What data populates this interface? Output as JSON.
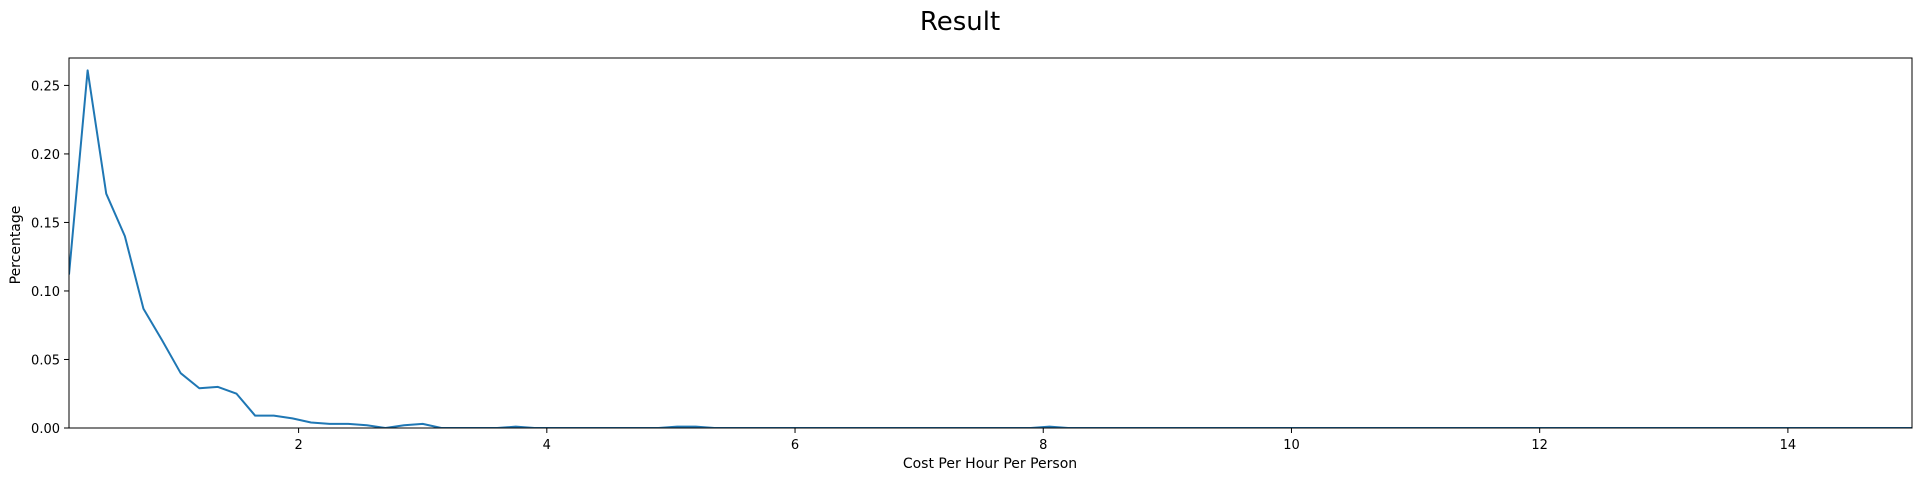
{
  "chart_data": {
    "type": "line",
    "title": "Result",
    "xlabel": "Cost Per Hour Per Person",
    "ylabel": "Percentage",
    "xlim": [
      0.15,
      15.0
    ],
    "ylim": [
      0.0,
      0.27
    ],
    "xticks": [
      2,
      4,
      6,
      8,
      10,
      12,
      14
    ],
    "xtick_labels": [
      "2",
      "4",
      "6",
      "8",
      "10",
      "12",
      "14"
    ],
    "yticks": [
      0.0,
      0.05,
      0.1,
      0.15,
      0.2,
      0.25
    ],
    "ytick_labels": [
      "0.00",
      "0.05",
      "0.10",
      "0.15",
      "0.20",
      "0.25"
    ],
    "grid": false,
    "legend": false,
    "series": [
      {
        "color": "#1f77b4",
        "x": [
          0.15,
          0.3,
          0.45,
          0.6,
          0.75,
          0.9,
          1.05,
          1.2,
          1.35,
          1.5,
          1.65,
          1.8,
          1.95,
          2.1,
          2.25,
          2.4,
          2.55,
          2.7,
          2.85,
          3.0,
          3.15,
          3.3,
          3.45,
          3.6,
          3.75,
          3.9,
          4.05,
          4.5,
          4.9,
          5.05,
          5.2,
          5.35,
          6.0,
          7.0,
          7.9,
          8.05,
          8.2,
          8.35,
          9.0,
          10.0,
          11.0,
          12.0,
          13.0,
          14.0,
          15.0
        ],
        "y": [
          0.112,
          0.261,
          0.171,
          0.14,
          0.087,
          0.064,
          0.04,
          0.029,
          0.03,
          0.025,
          0.009,
          0.009,
          0.007,
          0.004,
          0.003,
          0.003,
          0.002,
          0.0,
          0.002,
          0.003,
          0.0,
          0.0,
          0.0,
          0.0,
          0.001,
          0.0,
          0.0,
          0.0,
          0.0,
          0.001,
          0.001,
          0.0,
          0.0,
          0.0,
          0.0,
          0.001,
          0.0,
          0.0,
          0.0,
          0.0,
          0.0,
          0.0,
          0.0,
          0.0,
          0.0
        ]
      }
    ]
  }
}
